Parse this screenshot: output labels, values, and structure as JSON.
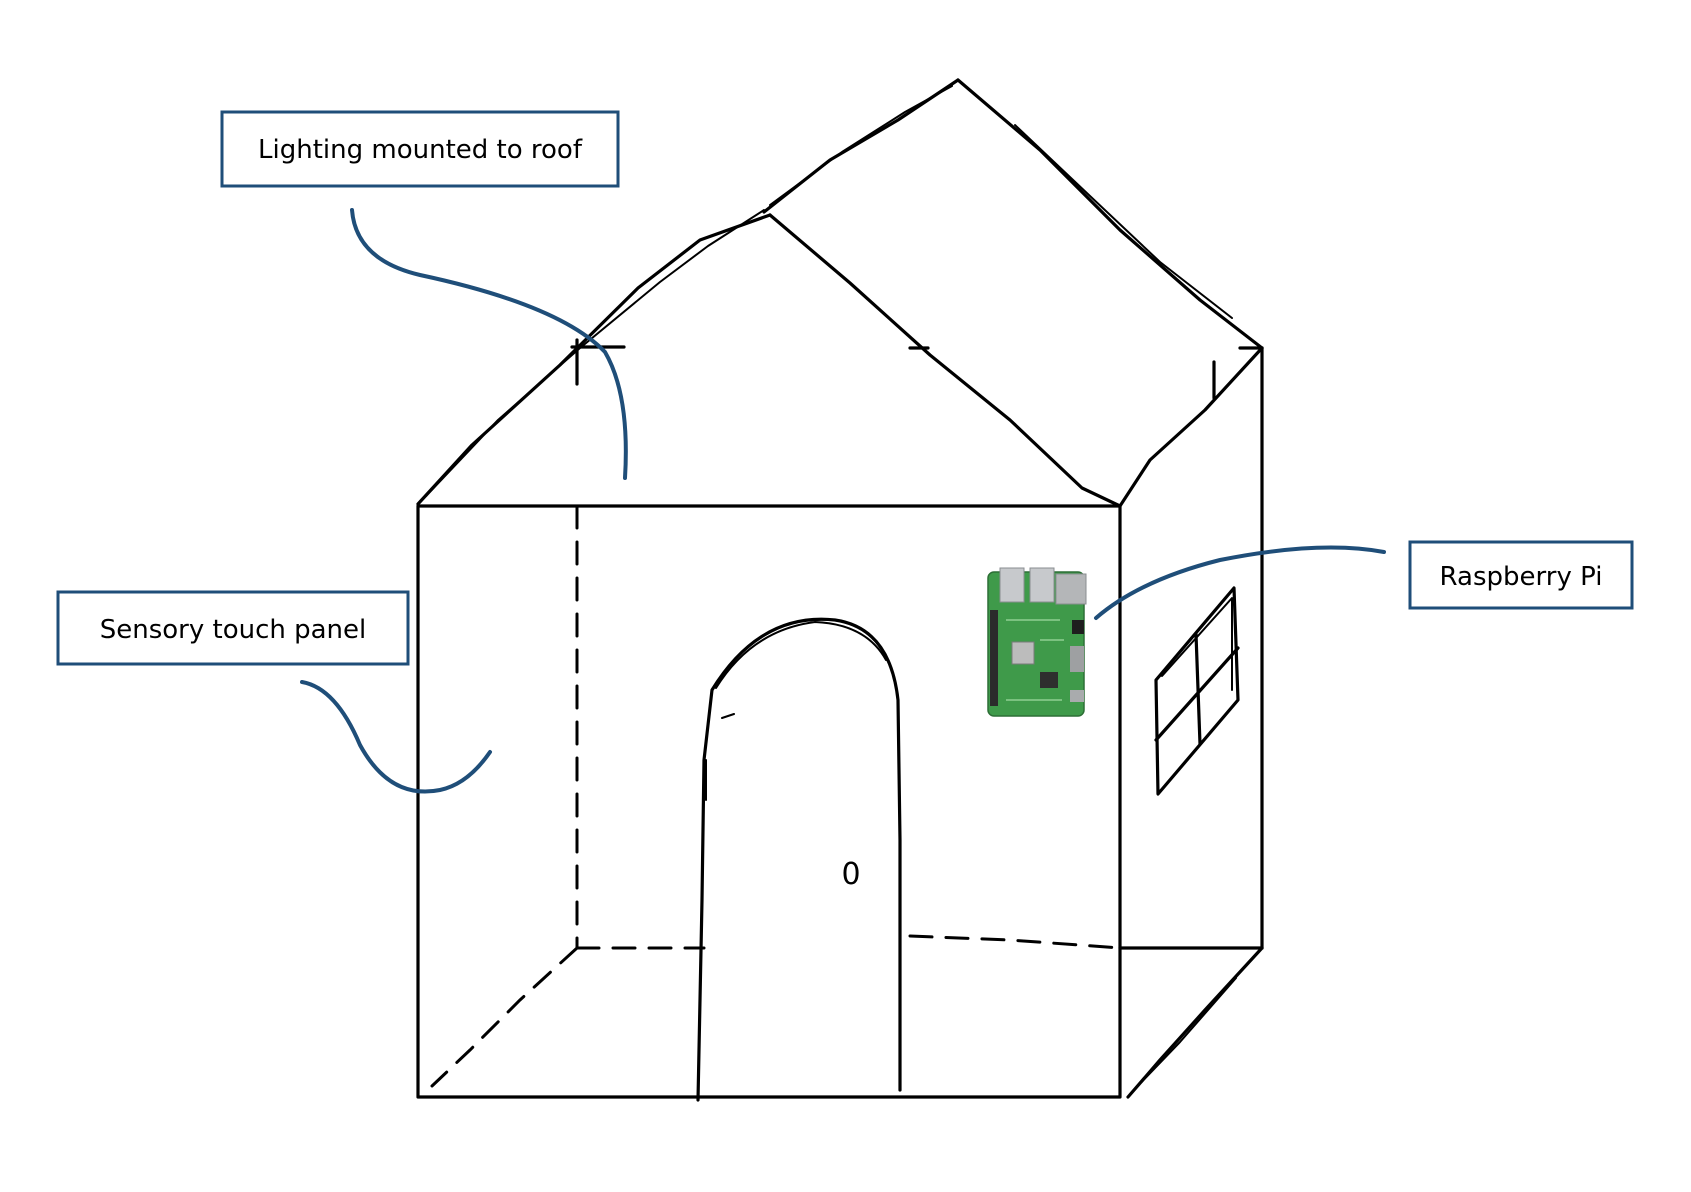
{
  "diagram": {
    "colors": {
      "callout": "#1f4e79",
      "sketch": "#000000",
      "board_green": "#3f9a4a"
    },
    "labels": {
      "lighting": "Lighting mounted to roof",
      "touch_panel": "Sensory touch panel",
      "raspberry_pi": "Raspberry Pi"
    },
    "door_knob_glyph": "0",
    "icons": {
      "raspberry_pi_board": "raspberry-pi-icon"
    }
  }
}
